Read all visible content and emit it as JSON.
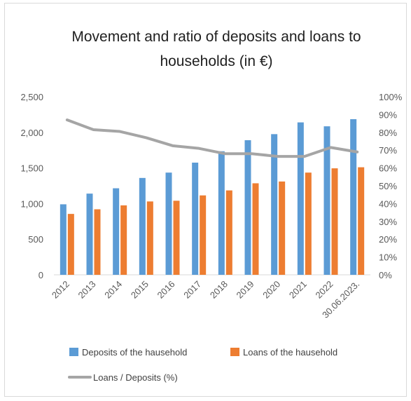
{
  "chart_data": {
    "type": "bar",
    "title_line1": "Movement and ratio of deposits and loans to",
    "title_line2": "households (in €)",
    "categories": [
      "2012",
      "2013",
      "2014",
      "2015",
      "2016",
      "2017",
      "2018",
      "2019",
      "2020",
      "2021",
      "2022",
      "30.06.2023."
    ],
    "series": [
      {
        "name": "Deposits of the hausehold",
        "type": "bar",
        "axis": "left",
        "color": "#5b9bd5",
        "values": [
          990,
          1140,
          1215,
          1360,
          1435,
          1575,
          1735,
          1890,
          1975,
          2140,
          2085,
          2185
        ]
      },
      {
        "name": "Loans of the hausehold",
        "type": "bar",
        "axis": "left",
        "color": "#ed7d31",
        "values": [
          855,
          920,
          975,
          1030,
          1040,
          1115,
          1185,
          1285,
          1310,
          1435,
          1495,
          1510
        ]
      },
      {
        "name": "Loans / Deposits (%)",
        "type": "line",
        "axis": "right",
        "color": "#a5a5a5",
        "values": [
          87,
          81.5,
          80.5,
          77,
          72.5,
          71,
          68,
          68,
          66.5,
          66.5,
          71.5,
          69
        ]
      }
    ],
    "y_left": {
      "min": 0,
      "max": 2500,
      "step": 500,
      "tick_labels": [
        "0",
        "500",
        "1,000",
        "1,500",
        "2,000",
        "2,500"
      ]
    },
    "y_right": {
      "min": 0,
      "max": 100,
      "step": 10,
      "tick_labels": [
        "0%",
        "10%",
        "20%",
        "30%",
        "40%",
        "50%",
        "60%",
        "70%",
        "80%",
        "90%",
        "100%"
      ]
    },
    "grid": false,
    "legend_position": "bottom"
  }
}
